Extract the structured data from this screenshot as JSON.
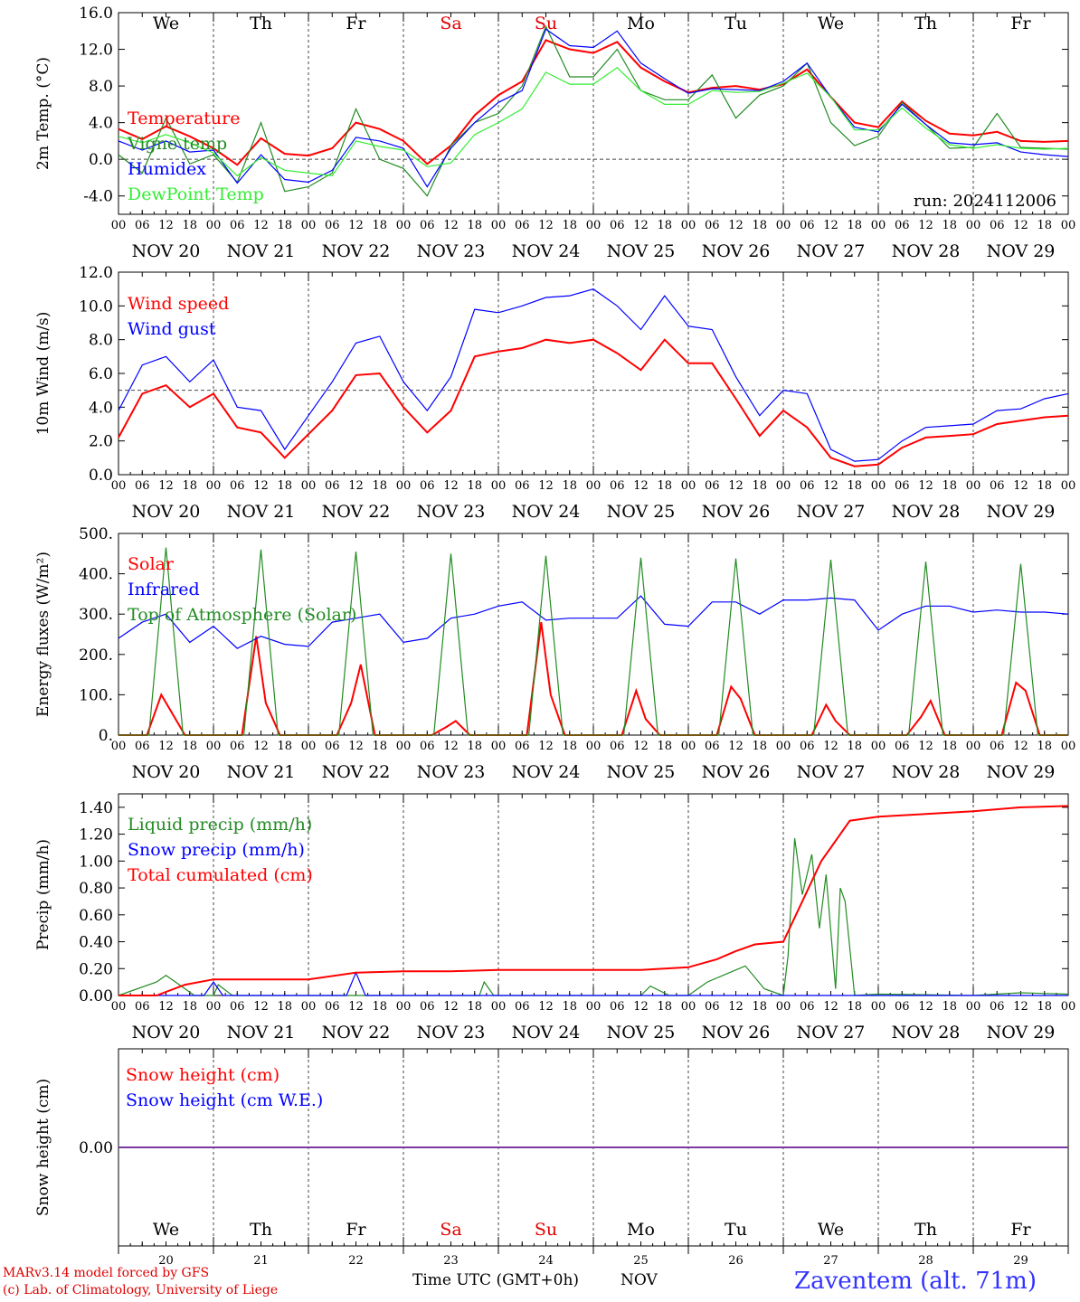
{
  "days_top": [
    "We",
    "Th",
    "Fr",
    "Sa",
    "Su",
    "Mo",
    "Tu",
    "We",
    "Th",
    "Fr"
  ],
  "weekend_color": "#e00000",
  "weekend_indices": [
    3,
    4
  ],
  "dates_bottom": [
    "20",
    "21",
    "22",
    "23",
    "24",
    "25",
    "26",
    "27",
    "28",
    "29"
  ],
  "date_labels": [
    "NOV 20",
    "NOV 21",
    "NOV 22",
    "NOV 23",
    "NOV 24",
    "NOV 25",
    "NOV 26",
    "NOV 27",
    "NOV 28",
    "NOV 29"
  ],
  "hour_ticks": [
    "00",
    "06",
    "12",
    "18"
  ],
  "hour_end": "00",
  "colors": {
    "red": "#ff0000",
    "darkgreen": "#228b22",
    "blue": "#0000ff",
    "lightgreen": "#33ee33",
    "purple": "#7a3aa0",
    "title_blue": "#3333ff"
  },
  "footer": {
    "model": "MARv3.14 model forced by GFS",
    "lab": "(c) Lab. of Climatology, University of Liege",
    "time_label": "Time UTC (GMT+0h)",
    "month": "NOV",
    "station": "Zaventem (alt. 71m)"
  },
  "chart_data": [
    {
      "type": "line",
      "ylabel": "2m Temp. (°C)",
      "yticks": [
        "16.0",
        "12.0",
        "8.0",
        "4.0",
        "0.0",
        "-4.0"
      ],
      "ylim": [
        -6,
        16
      ],
      "annotation": "run: 2024112006",
      "x_unit": "days since 2024-11-20 00 UTC",
      "series": [
        {
          "name": "Temperature",
          "color": "red",
          "x": [
            0,
            0.25,
            0.5,
            0.75,
            1,
            1.25,
            1.5,
            1.75,
            2,
            2.25,
            2.5,
            2.75,
            3,
            3.25,
            3.5,
            3.75,
            4,
            4.25,
            4.5,
            4.75,
            5,
            5.25,
            5.5,
            5.75,
            6,
            6.25,
            6.5,
            6.75,
            7,
            7.25,
            7.5,
            7.75,
            8,
            8.25,
            8.5,
            8.75,
            9,
            9.25,
            9.5,
            9.75,
            10
          ],
          "values": [
            3.3,
            2.2,
            3.6,
            2.5,
            1.2,
            -0.6,
            2.3,
            0.6,
            0.4,
            1.2,
            4.0,
            3.3,
            2.0,
            -0.5,
            1.5,
            4.8,
            7.0,
            8.5,
            13.0,
            12.0,
            11.6,
            12.8,
            10.0,
            8.5,
            7.3,
            7.8,
            8.0,
            7.6,
            8.2,
            9.8,
            6.8,
            4.0,
            3.5,
            6.3,
            4.2,
            2.8,
            2.6,
            3.0,
            2.0,
            1.9,
            2.0
          ]
        },
        {
          "name": "Vigne temp",
          "color": "darkgreen",
          "x": [
            0,
            0.25,
            0.5,
            0.75,
            1,
            1.25,
            1.5,
            1.75,
            2,
            2.25,
            2.5,
            2.75,
            3,
            3.25,
            3.5,
            3.75,
            4,
            4.25,
            4.5,
            4.75,
            5,
            5.25,
            5.5,
            5.75,
            6,
            6.25,
            6.5,
            6.75,
            7,
            7.25,
            7.5,
            7.75,
            8,
            8.25,
            8.5,
            8.75,
            9,
            9.25,
            9.5,
            9.75,
            10
          ],
          "values": [
            0.5,
            -1.5,
            4.5,
            -0.5,
            0.5,
            -2.5,
            4.0,
            -3.5,
            -3.0,
            -1.5,
            5.5,
            0.0,
            -1.0,
            -4.0,
            1.5,
            4.0,
            5.0,
            8.0,
            14.5,
            9.0,
            9.0,
            12.0,
            7.5,
            6.5,
            6.5,
            9.2,
            4.5,
            7.0,
            8.0,
            10.5,
            4.0,
            1.5,
            2.5,
            6.2,
            3.8,
            1.2,
            1.3,
            5.0,
            1.3,
            1.2,
            1.1
          ]
        },
        {
          "name": "Humidex",
          "color": "blue",
          "x": [
            0,
            0.25,
            0.5,
            0.75,
            1,
            1.25,
            1.5,
            1.75,
            2,
            2.25,
            2.5,
            2.75,
            3,
            3.25,
            3.5,
            3.75,
            4,
            4.25,
            4.5,
            4.75,
            5,
            5.25,
            5.5,
            5.75,
            6,
            6.25,
            6.5,
            6.75,
            7,
            7.25,
            7.5,
            7.75,
            8,
            8.25,
            8.5,
            8.75,
            9,
            9.25,
            9.5,
            9.75,
            10
          ],
          "values": [
            2.0,
            1.0,
            2.0,
            0.8,
            1.0,
            -2.6,
            0.5,
            -2.2,
            -2.5,
            -1.2,
            2.4,
            2.0,
            1.2,
            -3.0,
            1.2,
            4.0,
            6.2,
            7.5,
            14.2,
            12.4,
            12.2,
            14.0,
            10.5,
            8.8,
            7.2,
            7.7,
            7.6,
            7.5,
            8.5,
            10.5,
            6.8,
            3.5,
            3.0,
            6.0,
            3.8,
            1.8,
            1.6,
            1.8,
            0.8,
            0.5,
            0.3
          ]
        },
        {
          "name": "DewPoint Temp",
          "color": "lightgreen",
          "x": [
            0,
            0.25,
            0.5,
            0.75,
            1,
            1.25,
            1.5,
            1.75,
            2,
            2.25,
            2.5,
            2.75,
            3,
            3.25,
            3.5,
            3.75,
            4,
            4.25,
            4.5,
            4.75,
            5,
            5.25,
            5.5,
            5.75,
            6,
            6.25,
            6.5,
            6.75,
            7,
            7.25,
            7.5,
            7.75,
            8,
            8.25,
            8.5,
            8.75,
            9,
            9.25,
            9.5,
            9.75,
            10
          ],
          "values": [
            2.5,
            1.8,
            2.7,
            1.8,
            0.7,
            -1.8,
            0.2,
            -1.2,
            -1.5,
            -1.8,
            2.0,
            1.4,
            1.0,
            -0.8,
            -0.4,
            2.7,
            4.0,
            5.5,
            9.5,
            8.2,
            8.2,
            10.0,
            7.5,
            6.0,
            6.0,
            7.5,
            7.3,
            7.4,
            8.3,
            9.4,
            6.8,
            3.2,
            3.2,
            5.6,
            3.4,
            1.6,
            1.2,
            1.6,
            1.2,
            1.1,
            1.2
          ]
        }
      ]
    },
    {
      "type": "line",
      "ylabel": "10m Wind (m/s)",
      "yticks": [
        "12.0",
        "10.0",
        "8.0",
        "6.0",
        "4.0",
        "2.0",
        "0.0"
      ],
      "ylim": [
        0,
        12
      ],
      "series": [
        {
          "name": "Wind speed",
          "color": "red",
          "x": [
            0,
            0.25,
            0.5,
            0.75,
            1,
            1.25,
            1.5,
            1.75,
            2,
            2.25,
            2.5,
            2.75,
            3,
            3.25,
            3.5,
            3.75,
            4,
            4.25,
            4.5,
            4.75,
            5,
            5.25,
            5.5,
            5.75,
            6,
            6.25,
            6.5,
            6.75,
            7,
            7.25,
            7.5,
            7.75,
            8,
            8.25,
            8.5,
            8.75,
            9,
            9.25,
            9.5,
            9.75,
            10
          ],
          "values": [
            2.2,
            4.8,
            5.3,
            4.0,
            4.8,
            2.8,
            2.5,
            1.0,
            2.4,
            3.8,
            5.9,
            6.0,
            4.0,
            2.5,
            3.8,
            7.0,
            7.3,
            7.5,
            8.0,
            7.8,
            8.0,
            7.2,
            6.2,
            8.0,
            6.6,
            6.6,
            4.5,
            2.3,
            3.8,
            2.8,
            1.0,
            0.5,
            0.6,
            1.6,
            2.2,
            2.3,
            2.4,
            3.0,
            3.2,
            3.4,
            3.5
          ]
        },
        {
          "name": "Wind gust",
          "color": "blue",
          "x": [
            0,
            0.25,
            0.5,
            0.75,
            1,
            1.25,
            1.5,
            1.75,
            2,
            2.25,
            2.5,
            2.75,
            3,
            3.25,
            3.5,
            3.75,
            4,
            4.25,
            4.5,
            4.75,
            5,
            5.25,
            5.5,
            5.75,
            6,
            6.25,
            6.5,
            6.75,
            7,
            7.25,
            7.5,
            7.75,
            8,
            8.25,
            8.5,
            8.75,
            9,
            9.25,
            9.5,
            9.75,
            10
          ],
          "values": [
            3.8,
            6.5,
            7.0,
            5.5,
            6.8,
            4.0,
            3.8,
            1.5,
            3.5,
            5.5,
            7.8,
            8.2,
            5.5,
            3.8,
            5.8,
            9.8,
            9.6,
            10.0,
            10.5,
            10.6,
            11.0,
            10.0,
            8.6,
            10.6,
            8.8,
            8.6,
            5.8,
            3.5,
            5.0,
            4.8,
            1.5,
            0.8,
            0.9,
            2.0,
            2.8,
            2.9,
            3.0,
            3.8,
            3.9,
            4.5,
            4.8
          ]
        }
      ]
    },
    {
      "type": "line",
      "ylabel": "Energy fluxes (W/m²)",
      "yticks": [
        "500.",
        "400.",
        "300.",
        "200.",
        "100.",
        "0."
      ],
      "ylim": [
        0,
        500
      ],
      "series": [
        {
          "name": "Solar",
          "color": "red",
          "x": [
            0,
            0.3,
            0.45,
            0.55,
            0.7,
            1,
            1.3,
            1.45,
            1.55,
            1.7,
            2,
            2.3,
            2.45,
            2.55,
            2.7,
            3,
            3.3,
            3.45,
            3.55,
            3.7,
            4,
            4.3,
            4.45,
            4.55,
            4.7,
            5,
            5.3,
            5.45,
            5.55,
            5.7,
            6,
            6.3,
            6.45,
            6.55,
            6.7,
            7,
            7.3,
            7.45,
            7.55,
            7.7,
            8,
            8.3,
            8.45,
            8.55,
            8.7,
            9,
            9.3,
            9.45,
            9.55,
            9.7,
            10
          ],
          "values": [
            0,
            0,
            100,
            60,
            0,
            0,
            0,
            245,
            80,
            0,
            0,
            0,
            80,
            175,
            0,
            0,
            0,
            20,
            35,
            0,
            0,
            0,
            280,
            100,
            0,
            0,
            0,
            110,
            40,
            0,
            0,
            0,
            120,
            90,
            0,
            0,
            0,
            75,
            35,
            0,
            0,
            0,
            45,
            85,
            0,
            0,
            0,
            130,
            110,
            0,
            0
          ]
        },
        {
          "name": "Infrared",
          "color": "blue",
          "x": [
            0,
            0.25,
            0.5,
            0.75,
            1,
            1.25,
            1.5,
            1.75,
            2,
            2.25,
            2.5,
            2.75,
            3,
            3.25,
            3.5,
            3.75,
            4,
            4.25,
            4.5,
            4.75,
            5,
            5.25,
            5.5,
            5.75,
            6,
            6.25,
            6.5,
            6.75,
            7,
            7.25,
            7.5,
            7.75,
            8,
            8.25,
            8.5,
            8.75,
            9,
            9.25,
            9.5,
            9.75,
            10
          ],
          "values": [
            240,
            280,
            300,
            230,
            270,
            215,
            245,
            225,
            220,
            280,
            290,
            300,
            230,
            240,
            290,
            300,
            320,
            330,
            285,
            290,
            290,
            290,
            345,
            275,
            270,
            330,
            330,
            300,
            335,
            335,
            340,
            335,
            260,
            300,
            320,
            320,
            305,
            310,
            305,
            305,
            300
          ]
        },
        {
          "name": "Top of Atmosphere (Solar)",
          "color": "darkgreen",
          "x": [
            0,
            0.32,
            0.5,
            0.68,
            1,
            1.32,
            1.5,
            1.68,
            2,
            2.32,
            2.5,
            2.68,
            3,
            3.32,
            3.5,
            3.68,
            4,
            4.32,
            4.5,
            4.68,
            5,
            5.32,
            5.5,
            5.68,
            6,
            6.32,
            6.5,
            6.68,
            7,
            7.32,
            7.5,
            7.68,
            8,
            8.32,
            8.5,
            8.68,
            9,
            9.32,
            9.5,
            9.68,
            10
          ],
          "values": [
            0,
            0,
            465,
            0,
            0,
            0,
            460,
            0,
            0,
            0,
            455,
            0,
            0,
            0,
            450,
            0,
            0,
            0,
            445,
            0,
            0,
            0,
            440,
            0,
            0,
            0,
            438,
            0,
            0,
            0,
            435,
            0,
            0,
            0,
            430,
            0,
            0,
            0,
            425,
            0,
            0
          ]
        }
      ]
    },
    {
      "type": "line",
      "ylabel": "Precip (mm/h)",
      "yticks": [
        "1.40",
        "1.20",
        "1.00",
        "0.80",
        "0.60",
        "0.40",
        "0.20",
        "0.00"
      ],
      "ylim": [
        0,
        1.5
      ],
      "series": [
        {
          "name": "Liquid precip (mm/h)",
          "color": "darkgreen",
          "x": [
            0,
            0.4,
            0.5,
            0.6,
            0.8,
            1,
            1.05,
            1.2,
            2.5,
            3,
            3.8,
            3.85,
            3.95,
            4.5,
            5.5,
            5.6,
            5.8,
            6,
            6.2,
            6.4,
            6.6,
            6.8,
            7,
            7.05,
            7.12,
            7.2,
            7.3,
            7.38,
            7.45,
            7.55,
            7.6,
            7.65,
            7.75,
            8,
            9,
            9.5,
            10
          ],
          "values": [
            0,
            0.1,
            0.15,
            0.1,
            0,
            0,
            0.08,
            0,
            0,
            0,
            0,
            0.1,
            0,
            0,
            0,
            0.07,
            0,
            0,
            0.1,
            0.16,
            0.22,
            0.05,
            0,
            0.3,
            1.17,
            0.75,
            1.05,
            0.5,
            0.9,
            0.05,
            0.8,
            0.7,
            0,
            0.01,
            0,
            0.02,
            0.01
          ]
        },
        {
          "name": "Snow precip (mm/h)",
          "color": "blue",
          "x": [
            0,
            0.9,
            1,
            1.1,
            2.4,
            2.5,
            2.6,
            3,
            10
          ],
          "values": [
            0,
            0,
            0.1,
            0,
            0,
            0.17,
            0,
            0,
            0
          ]
        },
        {
          "name": "Total cumulated (cm)",
          "color": "red",
          "x": [
            0,
            0.4,
            0.7,
            1,
            1.5,
            2,
            2.5,
            3,
            3.5,
            4,
            4.5,
            5,
            5.5,
            6,
            6.3,
            6.5,
            6.7,
            7,
            7.1,
            7.3,
            7.4,
            7.5,
            7.7,
            8,
            8.5,
            9,
            9.5,
            10
          ],
          "values": [
            0,
            0,
            0.08,
            0.12,
            0.12,
            0.12,
            0.17,
            0.18,
            0.18,
            0.19,
            0.19,
            0.19,
            0.19,
            0.21,
            0.27,
            0.33,
            0.38,
            0.4,
            0.55,
            0.85,
            1.0,
            1.1,
            1.3,
            1.33,
            1.35,
            1.37,
            1.4,
            1.41
          ]
        }
      ]
    },
    {
      "type": "line",
      "ylabel": "Snow height (cm)",
      "yticks": [
        "0.00"
      ],
      "ylim": [
        -1,
        1
      ],
      "series": [
        {
          "name": "Snow height (cm)",
          "color": "red",
          "x": [
            0,
            10
          ],
          "values": [
            0,
            0
          ]
        },
        {
          "name": "Snow height (cm W.E.)",
          "color": "blue",
          "x": [
            0,
            10
          ],
          "values": [
            0,
            0
          ]
        }
      ]
    }
  ]
}
